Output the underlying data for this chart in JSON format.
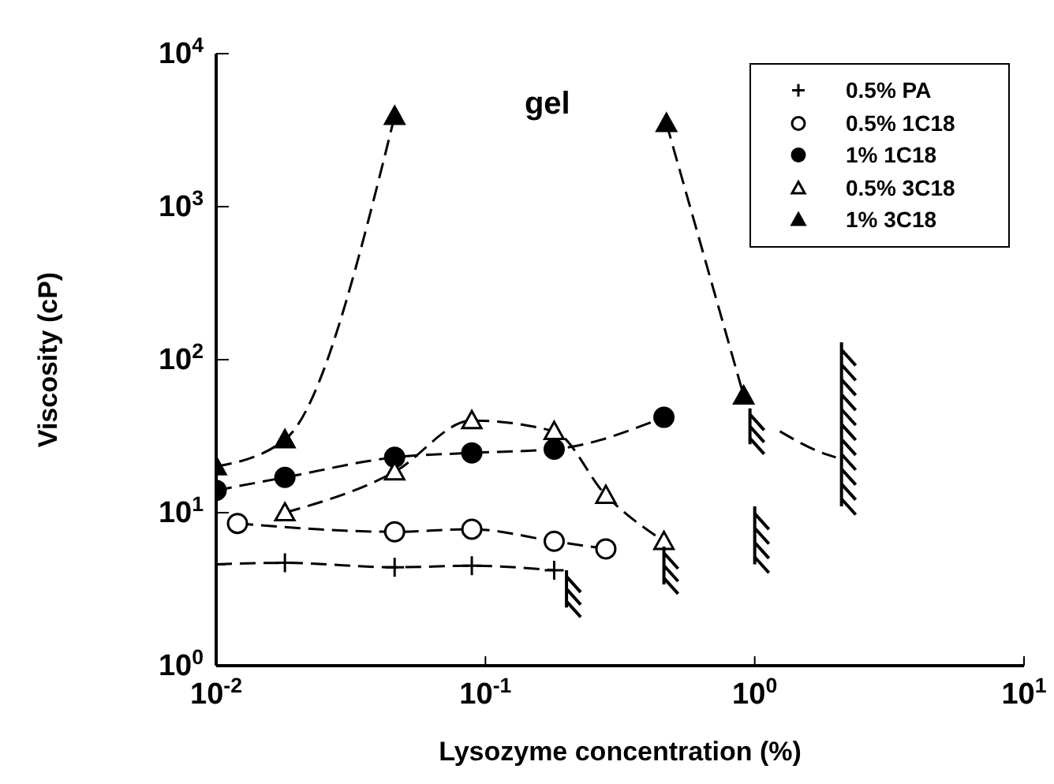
{
  "chart_data": {
    "type": "line",
    "xlabel": "Lysozyme  concentration  (%)",
    "ylabel": "Viscosity  (cP)",
    "log": "xy",
    "xlim": [
      0.01,
      10
    ],
    "ylim": [
      1,
      10000
    ],
    "xticks": [
      {
        "value": 0.01,
        "label": "10$^{-2}$"
      },
      {
        "value": 0.1,
        "label": "10$^{-1}$"
      },
      {
        "value": 1,
        "label": "10$^{0}$"
      },
      {
        "value": 10,
        "label": "10$^{1}$"
      }
    ],
    "yticks": [
      {
        "value": 1,
        "label": "10$^{0}$"
      },
      {
        "value": 10,
        "label": "10$^{1}$"
      },
      {
        "value": 100,
        "label": "10$^{2}$"
      },
      {
        "value": 1000,
        "label": "10$^{3}$"
      },
      {
        "value": 10000,
        "label": "10$^{4}$"
      }
    ],
    "legend": "top right",
    "line_style": "dashed",
    "annotations": [
      "gel"
    ],
    "series": [
      {
        "name": "0.5% PA",
        "color": "#000000",
        "marker": "cross",
        "x": [
          0.01,
          0.018,
          0.046,
          0.089,
          0.18
        ],
        "values": [
          4.6,
          4.7,
          4.4,
          4.5,
          4.2
        ]
      },
      {
        "name": "0.5% 1C18",
        "color": "#000000",
        "marker": "circle",
        "x": [
          0.012,
          0.046,
          0.089,
          0.18,
          0.28
        ],
        "values": [
          8.5,
          7.5,
          7.8,
          6.5,
          5.8
        ]
      },
      {
        "name": "1% 1C18",
        "color": "#000000",
        "marker": "circle",
        "x": [
          0.01,
          0.018,
          0.046,
          0.089,
          0.18,
          0.46
        ],
        "values": [
          14,
          17,
          23,
          24.6,
          26,
          42
        ]
      },
      {
        "name": "0.5% 3C18",
        "color": "#000000",
        "marker": "triangle",
        "x": [
          0.018,
          0.046,
          0.089,
          0.18,
          0.28,
          0.46
        ],
        "values": [
          10,
          18.5,
          40,
          34,
          13,
          6.5
        ]
      },
      {
        "name": "1% 3C18",
        "color": "#000000",
        "marker": "triangle",
        "x": [
          0.01,
          0.018,
          0.046,
          0.15,
          0.47,
          0.91
        ],
        "values": [
          20,
          30,
          3900,
          null,
          3500,
          58
        ]
      },
      {
        "color": "#000000",
        "marker": "none",
        "x": [
          1.24,
          1.74,
          2.0
        ],
        "values": [
          34,
          25,
          23
        ]
      }
    ]
  }
}
